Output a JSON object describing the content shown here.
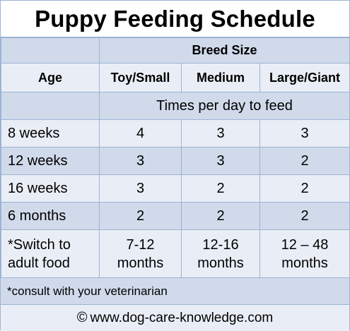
{
  "title": "Puppy Feeding Schedule",
  "header": {
    "group_label": "Breed Size",
    "age_label": "Age",
    "columns": [
      "Toy/Small",
      "Medium",
      "Large/Giant"
    ]
  },
  "subheader": "Times per day to feed",
  "rows": [
    {
      "age": "8 weeks",
      "values": [
        "4",
        "3",
        "3"
      ]
    },
    {
      "age": "12 weeks",
      "values": [
        "3",
        "3",
        "2"
      ]
    },
    {
      "age": "16 weeks",
      "values": [
        "3",
        "2",
        "2"
      ]
    },
    {
      "age": "6 months",
      "values": [
        "2",
        "2",
        "2"
      ]
    }
  ],
  "switch_row": {
    "label_line1": "*Switch to",
    "label_line2": "adult food",
    "values": [
      {
        "line1": "7-12",
        "line2": "months"
      },
      {
        "line1": "12-16",
        "line2": "months"
      },
      {
        "line1": "12 – 48",
        "line2": "months"
      }
    ]
  },
  "note": "*consult with your veterinarian",
  "footer": {
    "copyright_symbol": "©",
    "site": "www.dog-care-knowledge.com"
  },
  "colors": {
    "band_dark": "#d0daea",
    "band_light": "#e9eef6",
    "border": "#9db3d4"
  }
}
